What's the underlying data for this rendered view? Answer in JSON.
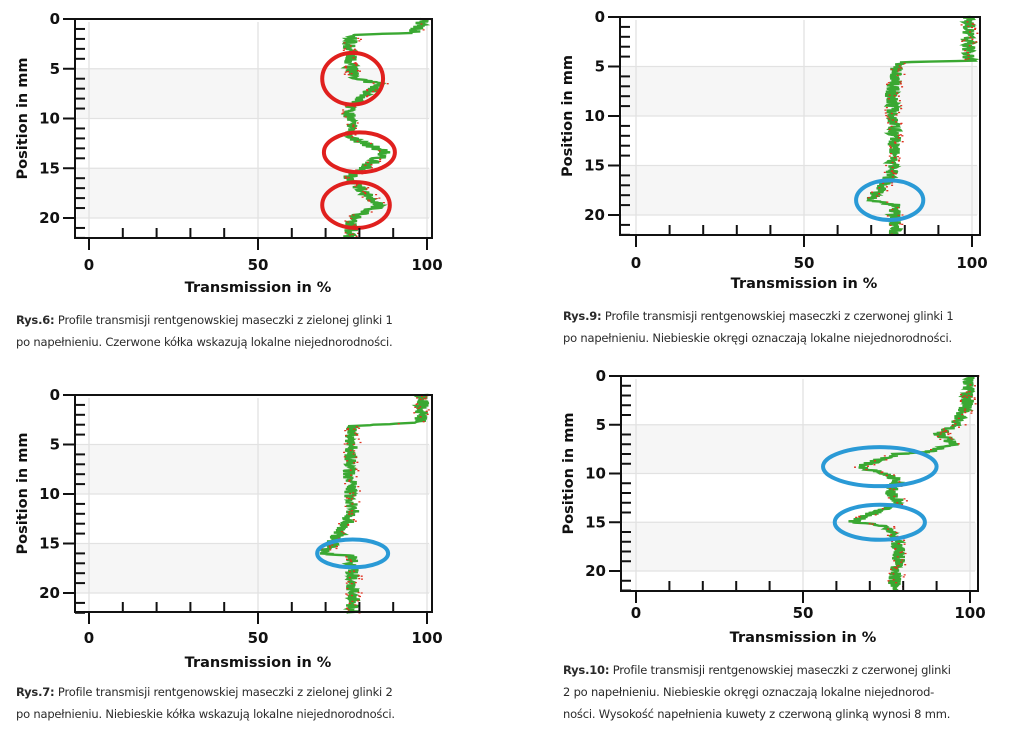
{
  "chart_data": [
    {
      "id": "rys6",
      "type": "line",
      "xlabel": "Transmission in %",
      "ylabel": "Position in mm",
      "xlim": [
        0,
        100
      ],
      "ylim": [
        0,
        22
      ],
      "x_ticks": [
        "0",
        "50",
        "100"
      ],
      "y_ticks": [
        "0",
        "5",
        "10",
        "15",
        "20"
      ],
      "series": [
        {
          "name": "profile",
          "colors": [
            "#3aa832",
            "#e0301e"
          ],
          "points": [
            [
              0,
              100
            ],
            [
              0.5,
              98
            ],
            [
              1.4,
              96
            ],
            [
              1.6,
              78
            ],
            [
              3,
              77
            ],
            [
              6,
              78
            ],
            [
              6.5,
              86
            ],
            [
              9,
              77
            ],
            [
              12,
              78
            ],
            [
              13.4,
              88
            ],
            [
              16,
              77
            ],
            [
              18.8,
              86
            ],
            [
              20,
              78
            ],
            [
              22,
              77
            ]
          ]
        }
      ],
      "annotations": [
        {
          "shape": "ellipse",
          "color": "#e0201e",
          "x": 78,
          "y": 6,
          "rx": 9,
          "ry": 2.6
        },
        {
          "shape": "ellipse",
          "color": "#e0201e",
          "x": 80,
          "y": 13.4,
          "rx": 10.5,
          "ry": 2
        },
        {
          "shape": "ellipse",
          "color": "#e0201e",
          "x": 79,
          "y": 18.7,
          "rx": 10,
          "ry": 2.3
        }
      ],
      "caption": {
        "label": "Rys.6:",
        "lines": [
          "Profile transmisji rentgenowskiej maseczki z zielonej glinki 1",
          "po napełnieniu. Czerwone kółka wskazują lokalne niejednorodności."
        ]
      }
    },
    {
      "id": "rys9",
      "type": "line",
      "xlabel": "Transmission in %",
      "ylabel": "Position in mm",
      "xlim": [
        0,
        100
      ],
      "ylim": [
        0,
        22
      ],
      "x_ticks": [
        "0",
        "50",
        "100"
      ],
      "y_ticks": [
        "0",
        "5",
        "10",
        "15",
        "20"
      ],
      "series": [
        {
          "name": "profile",
          "colors": [
            "#3aa832",
            "#e0301e"
          ],
          "points": [
            [
              0,
              99
            ],
            [
              4.4,
              99
            ],
            [
              4.6,
              78
            ],
            [
              8,
              76
            ],
            [
              12,
              77
            ],
            [
              16,
              76
            ],
            [
              18.5,
              70
            ],
            [
              19,
              77
            ],
            [
              22,
              77
            ]
          ]
        }
      ],
      "annotations": [
        {
          "shape": "ellipse",
          "color": "#2a9ad6",
          "x": 75.5,
          "y": 18.5,
          "rx": 10,
          "ry": 2
        }
      ],
      "caption": {
        "label": "Rys.9:",
        "lines": [
          "Profile transmisji rentgenowskiej maseczki z czerwonej glinki 1",
          "po napełnieniu. Niebieskie okręgi oznaczają lokalne niejednorodności."
        ]
      }
    },
    {
      "id": "rys7",
      "type": "line",
      "xlabel": "Transmission in %",
      "ylabel": "Position in mm",
      "xlim": [
        0,
        100
      ],
      "ylim": [
        0,
        22
      ],
      "x_ticks": [
        "0",
        "50",
        "100"
      ],
      "y_ticks": [
        "0",
        "5",
        "10",
        "15",
        "20"
      ],
      "series": [
        {
          "name": "profile",
          "colors": [
            "#3aa832",
            "#e0301e"
          ],
          "points": [
            [
              0,
              99
            ],
            [
              2.8,
              98
            ],
            [
              3.1,
              78
            ],
            [
              8,
              77
            ],
            [
              12,
              78
            ],
            [
              16,
              70
            ],
            [
              16.3,
              78
            ],
            [
              22,
              78
            ]
          ]
        }
      ],
      "annotations": [
        {
          "shape": "ellipse",
          "color": "#2a9ad6",
          "x": 78,
          "y": 16,
          "rx": 10.5,
          "ry": 1.4
        }
      ],
      "caption": {
        "label": "Rys.7:",
        "lines": [
          "Profile transmisji rentgenowskiej maseczki z zielonej glinki 2",
          "po napełnieniu. Niebieskie kółka wskazują lokalne niejednorodności."
        ]
      }
    },
    {
      "id": "rys10",
      "type": "line",
      "xlabel": "Transmission in %",
      "ylabel": "Position in mm",
      "xlim": [
        0,
        100
      ],
      "ylim": [
        0,
        22
      ],
      "x_ticks": [
        "0",
        "50",
        "100"
      ],
      "y_ticks": [
        "0",
        "5",
        "10",
        "15",
        "20"
      ],
      "series": [
        {
          "name": "profile",
          "colors": [
            "#3aa832",
            "#e0301e"
          ],
          "points": [
            [
              0,
              100
            ],
            [
              3,
              99
            ],
            [
              5,
              96
            ],
            [
              6,
              91
            ],
            [
              7,
              95
            ],
            [
              7.8,
              88
            ],
            [
              8,
              78
            ],
            [
              9.3,
              67
            ],
            [
              10.5,
              78
            ],
            [
              12,
              76
            ],
            [
              13,
              79
            ],
            [
              15,
              64
            ],
            [
              15.4,
              76
            ],
            [
              18,
              79
            ],
            [
              22,
              77
            ]
          ]
        }
      ],
      "annotations": [
        {
          "shape": "ellipse",
          "color": "#2a9ad6",
          "x": 73,
          "y": 9.3,
          "rx": 17,
          "ry": 2
        },
        {
          "shape": "ellipse",
          "color": "#2a9ad6",
          "x": 73,
          "y": 15,
          "rx": 13.5,
          "ry": 1.8
        }
      ],
      "caption": {
        "label": "Rys.10:",
        "lines": [
          "Profile transmisji rentgenowskiej maseczki z czerwonej glinki",
          "2 po napełnieniu. Niebieskie okręgi oznaczają lokalne niejednorod-",
          "ności. Wysokość napełnienia kuwety z czerwoną glinką wynosi 8 mm."
        ]
      }
    }
  ]
}
